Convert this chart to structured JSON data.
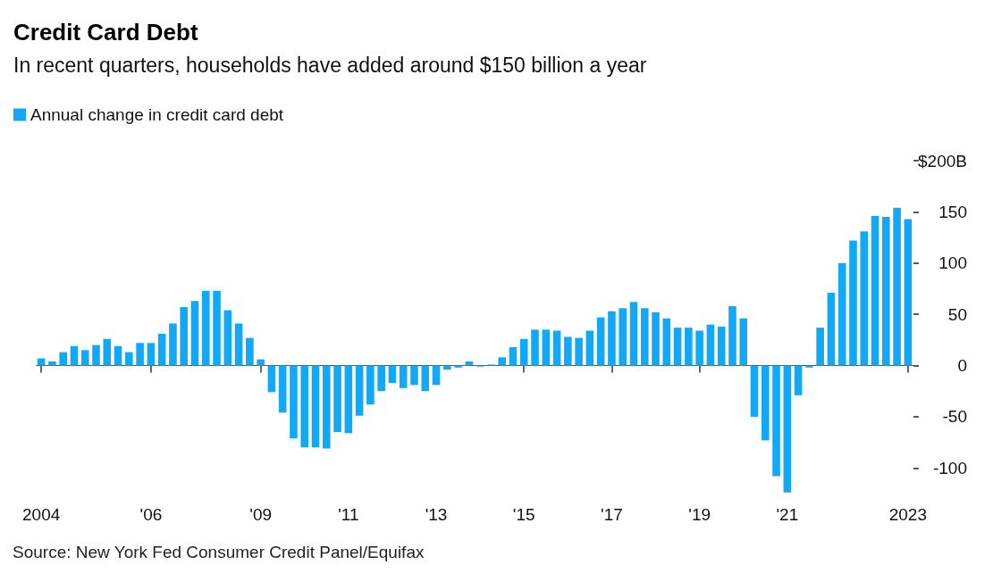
{
  "chart_data": {
    "type": "bar",
    "title": "Credit Card Debt",
    "subtitle": "In recent quarters, households have added around $150 billion a year",
    "categories": [
      "2004",
      null,
      null,
      null,
      null,
      null,
      null,
      null,
      null,
      null,
      "'06",
      null,
      null,
      null,
      null,
      null,
      null,
      null,
      null,
      null,
      "'09",
      null,
      null,
      null,
      null,
      null,
      null,
      null,
      "'11",
      null,
      null,
      null,
      null,
      null,
      null,
      null,
      "'13",
      null,
      null,
      null,
      null,
      null,
      null,
      null,
      "'15",
      null,
      null,
      null,
      null,
      null,
      null,
      null,
      "'17",
      null,
      null,
      null,
      null,
      null,
      null,
      null,
      "'19",
      null,
      null,
      null,
      null,
      null,
      null,
      null,
      "'21",
      null,
      null,
      null,
      null,
      null,
      null,
      null,
      null,
      null,
      null,
      "2023"
    ],
    "series": [
      {
        "name": "Annual change in credit card debt",
        "color": "#12a8f5",
        "values": [
          7,
          4,
          13,
          19,
          15,
          20,
          26,
          19,
          13,
          22,
          22,
          31,
          41,
          57,
          63,
          73,
          73,
          54,
          41,
          27,
          6,
          -26,
          -46,
          -71,
          -80,
          -80,
          -81,
          -65,
          -66,
          -49,
          -38,
          -25,
          -17,
          -22,
          -19,
          -25,
          -19,
          -4,
          -2,
          4,
          -1,
          1,
          8,
          18,
          26,
          35,
          35,
          34,
          28,
          27,
          34,
          47,
          53,
          56,
          62,
          56,
          52,
          46,
          37,
          37,
          34,
          40,
          38,
          58,
          46,
          -50,
          -73,
          -108,
          -124,
          -29,
          -2,
          37,
          71,
          100,
          122,
          131,
          146,
          145,
          154,
          143
        ]
      }
    ],
    "ylim": [
      -125,
      200
    ],
    "yticks": [
      {
        "value": 200,
        "label": "$200B"
      },
      150,
      100,
      50,
      0,
      -50,
      -100
    ],
    "grid": false,
    "legend": "top left",
    "ref_lines": [
      {
        "axis": "y",
        "value": 0,
        "color": "#555555"
      }
    ],
    "annotations": [
      "Source: New York Fed Consumer Credit Panel/Equifax"
    ]
  }
}
